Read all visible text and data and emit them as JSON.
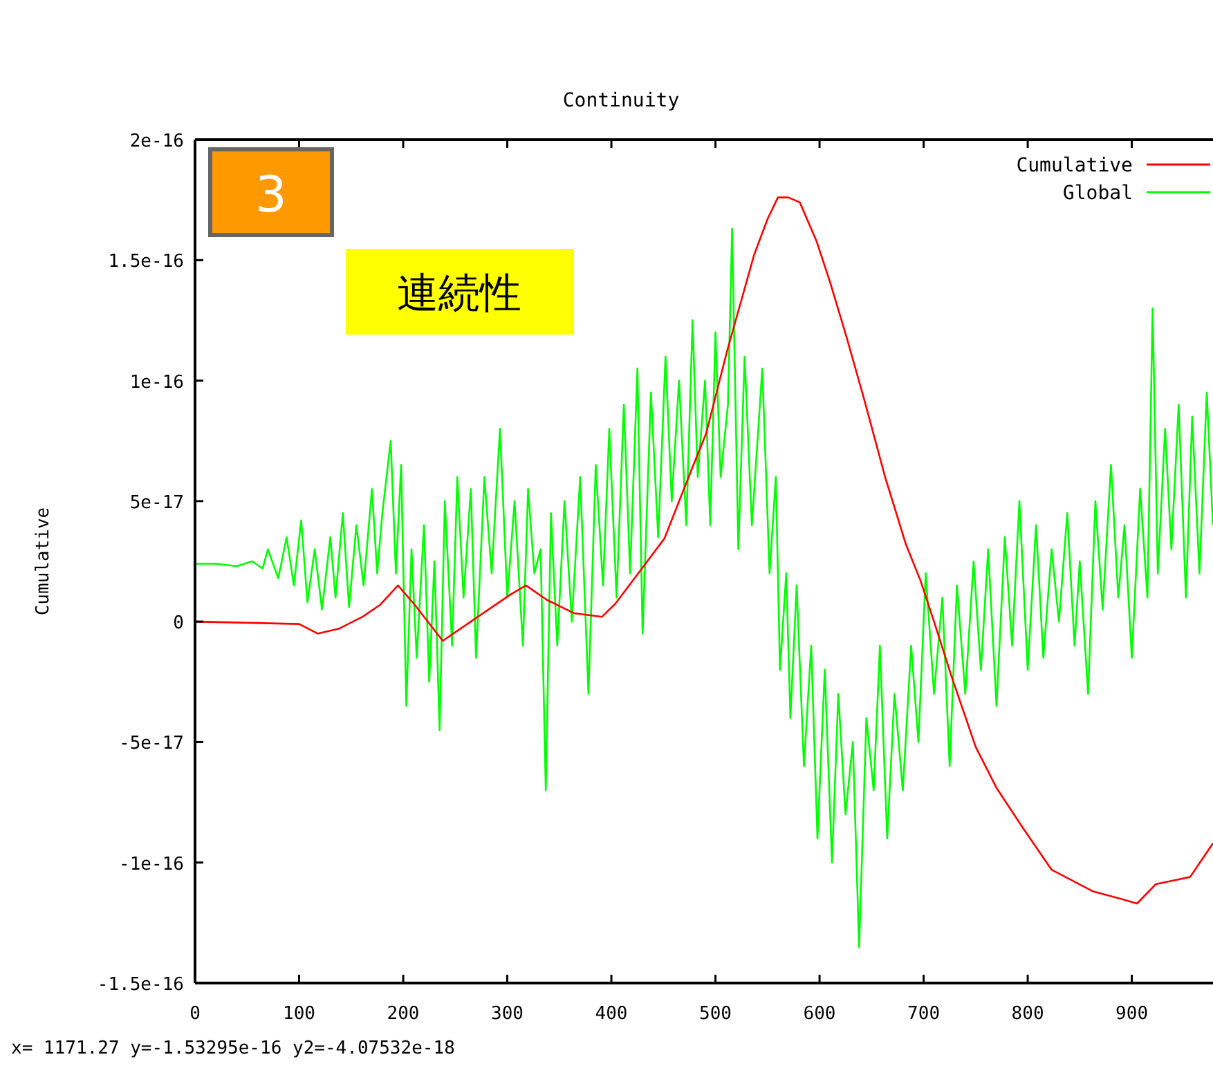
{
  "chart_data": {
    "type": "line",
    "title": "Continuity",
    "ylabel": "Cumulative",
    "xlim": [
      0,
      978
    ],
    "ylim": [
      -1.5e-16,
      2e-16
    ],
    "xticks": [
      0,
      100,
      200,
      300,
      400,
      500,
      600,
      700,
      800,
      900
    ],
    "yticks": [
      -1.5e-16,
      -1e-16,
      -5e-17,
      0,
      5e-17,
      1e-16,
      1.5e-16,
      2e-16
    ],
    "legend": "top right",
    "grid": false,
    "annotations": [
      "3",
      "連続性",
      "x= 1171.27 y=-1.53295e-16 y2=-4.07532e-18"
    ],
    "series": [
      {
        "name": "Cumulative",
        "color": "#ff0000",
        "x": [
          0,
          100,
          118,
          138,
          161,
          178,
          195,
          211,
          238,
          265,
          304,
          318,
          338,
          364,
          391,
          404,
          431,
          451,
          477,
          491,
          511,
          524,
          537,
          550,
          560,
          570,
          581,
          597,
          610,
          626,
          643,
          663,
          683,
          697,
          710,
          727,
          750,
          770,
          796,
          823,
          863,
          889,
          905,
          923,
          956,
          978
        ],
        "values": [
          0,
          -1e-18,
          -5e-18,
          -3e-18,
          2e-18,
          7e-18,
          1.5e-17,
          7e-18,
          -8e-18,
          0,
          1.15e-17,
          1.5e-17,
          9e-18,
          3.5e-18,
          2e-18,
          7.5e-18,
          2.3e-17,
          3.45e-17,
          6.3e-17,
          7.8e-17,
          1.12e-16,
          1.32e-16,
          1.52e-16,
          1.67e-16,
          1.76e-16,
          1.76e-16,
          1.74e-16,
          1.58e-16,
          1.41e-16,
          1.18e-16,
          9.2e-17,
          6e-17,
          3.2e-17,
          1.7e-17,
          0,
          -2.3e-17,
          -5.2e-17,
          -6.9e-17,
          -8.6e-17,
          -1.03e-16,
          -1.12e-16,
          -1.15e-16,
          -1.17e-16,
          -1.09e-16,
          -1.06e-16,
          -9.2e-17
        ]
      },
      {
        "name": "Global",
        "color": "#00ff00",
        "x": [
          0,
          20,
          40,
          55,
          65,
          70,
          80,
          88,
          95,
          102,
          108,
          115,
          122,
          130,
          135,
          142,
          148,
          155,
          162,
          170,
          175,
          180,
          188,
          193,
          198,
          203,
          208,
          213,
          220,
          225,
          230,
          235,
          240,
          247,
          252,
          258,
          265,
          270,
          278,
          285,
          293,
          300,
          307,
          315,
          320,
          326,
          332,
          337,
          342,
          348,
          355,
          362,
          370,
          378,
          385,
          392,
          398,
          405,
          412,
          418,
          425,
          430,
          438,
          445,
          452,
          458,
          465,
          472,
          478,
          483,
          490,
          495,
          500,
          505,
          512,
          516,
          522,
          528,
          535,
          545,
          552,
          558,
          562,
          568,
          572,
          578,
          585,
          592,
          598,
          605,
          612,
          618,
          625,
          632,
          638,
          645,
          652,
          658,
          665,
          672,
          680,
          688,
          695,
          702,
          710,
          718,
          725,
          732,
          740,
          748,
          755,
          762,
          770,
          778,
          785,
          792,
          800,
          808,
          815,
          823,
          830,
          838,
          845,
          850,
          858,
          865,
          872,
          880,
          887,
          893,
          900,
          908,
          915,
          920,
          925,
          932,
          938,
          945,
          952,
          958,
          965,
          972,
          978
        ],
        "values": [
          2.4e-17,
          2.4e-17,
          2.3e-17,
          2.5e-17,
          2.2e-17,
          3e-17,
          1.8e-17,
          3.5e-17,
          1.5e-17,
          4.2e-17,
          8e-18,
          3e-17,
          5e-18,
          3.5e-17,
          1e-17,
          4.5e-17,
          6e-18,
          4e-17,
          1.5e-17,
          5.5e-17,
          2e-17,
          4.5e-17,
          7.5e-17,
          2e-17,
          6.5e-17,
          -3.5e-17,
          3e-17,
          -1.5e-17,
          4e-17,
          -2.5e-17,
          2.5e-17,
          -4.5e-17,
          5e-17,
          -1e-17,
          6e-17,
          1e-17,
          5.5e-17,
          -1.5e-17,
          6e-17,
          2e-17,
          8e-17,
          1e-17,
          5e-17,
          -1e-17,
          5.5e-17,
          2e-17,
          3e-17,
          -7e-17,
          4.5e-17,
          -1e-17,
          5e-17,
          0,
          6e-17,
          -3e-17,
          6.5e-17,
          1.5e-17,
          8e-17,
          1e-17,
          9e-17,
          2e-17,
          1.05e-16,
          -5e-18,
          9.5e-17,
          3.5e-17,
          1.1e-16,
          5e-17,
          1e-16,
          4e-17,
          1.25e-16,
          6e-17,
          1e-16,
          4e-17,
          1.2e-16,
          6e-17,
          9e-17,
          1.63e-16,
          3e-17,
          1.1e-16,
          4e-17,
          1.05e-16,
          2e-17,
          6e-17,
          -2e-17,
          2e-17,
          -4e-17,
          1.5e-17,
          -6e-17,
          -1e-17,
          -9e-17,
          -2e-17,
          -1e-16,
          -3e-17,
          -8e-17,
          -5e-17,
          -1.35e-16,
          -4e-17,
          -7e-17,
          -1e-17,
          -9e-17,
          -3e-17,
          -7e-17,
          -1e-17,
          -5e-17,
          2e-17,
          -3e-17,
          1e-17,
          -6e-17,
          1.5e-17,
          -3e-17,
          2.5e-17,
          -2e-17,
          3e-17,
          -3.5e-17,
          3.5e-17,
          -1e-17,
          5e-17,
          -2e-17,
          4e-17,
          -1.5e-17,
          3e-17,
          0,
          4.5e-17,
          -1e-17,
          2.5e-17,
          -3e-17,
          5e-17,
          5e-18,
          6.5e-17,
          1e-17,
          4e-17,
          -1.5e-17,
          5.5e-17,
          1e-17,
          1.3e-16,
          2e-17,
          8e-17,
          3e-17,
          9e-17,
          1e-17,
          8.5e-17,
          2e-17,
          9.5e-17,
          4e-17
        ]
      }
    ]
  }
}
